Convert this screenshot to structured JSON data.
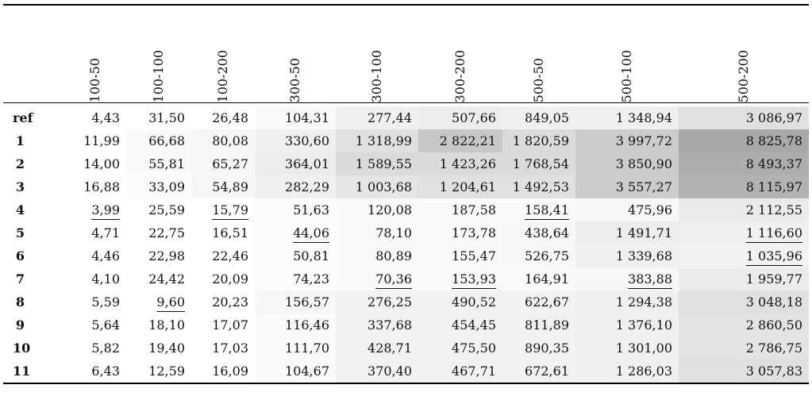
{
  "table": {
    "corner": "",
    "columns": [
      "100-50",
      "100-100",
      "100-200",
      "300-50",
      "300-100",
      "300-200",
      "500-50",
      "500-100",
      "500-200"
    ],
    "rows": [
      {
        "label": "ref",
        "values": [
          "4,43",
          "31,50",
          "26,48",
          "104,31",
          "277,44",
          "507,66",
          "849,05",
          "1 348,94",
          "3 086,97"
        ],
        "shade": [
          0,
          0,
          0,
          0.02,
          0.06,
          0.07,
          0.06,
          0.06,
          0.12
        ]
      },
      {
        "label": "1",
        "values": [
          "11,99",
          "66,68",
          "80,08",
          "330,60",
          "1 318,99",
          "2 822,21",
          "1 820,59",
          "3 997,72",
          "8 825,78"
        ],
        "shade": [
          0,
          0.02,
          0.03,
          0.06,
          0.12,
          0.22,
          0.14,
          0.2,
          0.34
        ]
      },
      {
        "label": "2",
        "values": [
          "14,00",
          "55,81",
          "65,27",
          "364,01",
          "1 589,55",
          "1 423,26",
          "1 768,54",
          "3 850,90",
          "8 493,37"
        ],
        "shade": [
          0,
          0.02,
          0.03,
          0.07,
          0.14,
          0.14,
          0.14,
          0.2,
          0.32
        ]
      },
      {
        "label": "3",
        "values": [
          "16,88",
          "33,09",
          "54,89",
          "282,29",
          "1 003,68",
          "1 204,61",
          "1 492,53",
          "3 557,27",
          "8 115,97"
        ],
        "shade": [
          0,
          0.01,
          0.03,
          0.06,
          0.1,
          0.12,
          0.12,
          0.2,
          0.3
        ]
      },
      {
        "label": "4",
        "values": [
          "3,99",
          "25,59",
          "15,79",
          "51,63",
          "120,08",
          "187,58",
          "158,41",
          "475,96",
          "2 112,55"
        ],
        "shade": [
          0,
          0,
          0,
          0.01,
          0.02,
          0.02,
          0.02,
          0.03,
          0.08
        ],
        "underline": [
          0,
          2,
          6
        ]
      },
      {
        "label": "5",
        "values": [
          "4,71",
          "22,75",
          "16,51",
          "44,06",
          "78,10",
          "173,78",
          "438,64",
          "1 491,71",
          "1 116,60"
        ],
        "shade": [
          0,
          0,
          0,
          0.01,
          0.02,
          0.02,
          0.03,
          0.07,
          0.06
        ],
        "underline": [
          3,
          8
        ]
      },
      {
        "label": "6",
        "values": [
          "4,46",
          "22,98",
          "22,46",
          "50,81",
          "80,89",
          "155,47",
          "526,75",
          "1 339,68",
          "1 035,96"
        ],
        "shade": [
          0,
          0,
          0,
          0.01,
          0.02,
          0.02,
          0.03,
          0.06,
          0.05
        ],
        "underline": [
          8
        ]
      },
      {
        "label": "7",
        "values": [
          "4,10",
          "24,42",
          "20,09",
          "74,23",
          "70,36",
          "153,93",
          "164,91",
          "383,88",
          "1 959,77"
        ],
        "shade": [
          0,
          0,
          0,
          0.01,
          0.02,
          0.02,
          0.02,
          0.03,
          0.08
        ],
        "underline": [
          4,
          5,
          7
        ]
      },
      {
        "label": "8",
        "values": [
          "5,59",
          "9,60",
          "20,23",
          "156,57",
          "276,25",
          "490,52",
          "622,67",
          "1 294,38",
          "3 048,18"
        ],
        "shade": [
          0,
          0,
          0,
          0.03,
          0.05,
          0.05,
          0.05,
          0.06,
          0.12
        ],
        "underline": [
          1
        ]
      },
      {
        "label": "9",
        "values": [
          "5,64",
          "18,10",
          "17,07",
          "116,46",
          "337,68",
          "454,45",
          "811,89",
          "1 376,10",
          "2 860,50"
        ],
        "shade": [
          0,
          0,
          0,
          0.02,
          0.05,
          0.05,
          0.05,
          0.06,
          0.11
        ]
      },
      {
        "label": "10",
        "values": [
          "5,82",
          "19,40",
          "17,03",
          "111,70",
          "428,71",
          "475,50",
          "890,35",
          "1 301,00",
          "2 786,75"
        ],
        "shade": [
          0,
          0,
          0,
          0.02,
          0.05,
          0.05,
          0.05,
          0.06,
          0.11
        ]
      },
      {
        "label": "11",
        "values": [
          "6,43",
          "12,59",
          "16,09",
          "104,67",
          "370,40",
          "467,71",
          "672,61",
          "1 286,03",
          "3 057,83"
        ],
        "shade": [
          0,
          0,
          0,
          0.02,
          0.05,
          0.05,
          0.05,
          0.06,
          0.12
        ]
      }
    ]
  }
}
